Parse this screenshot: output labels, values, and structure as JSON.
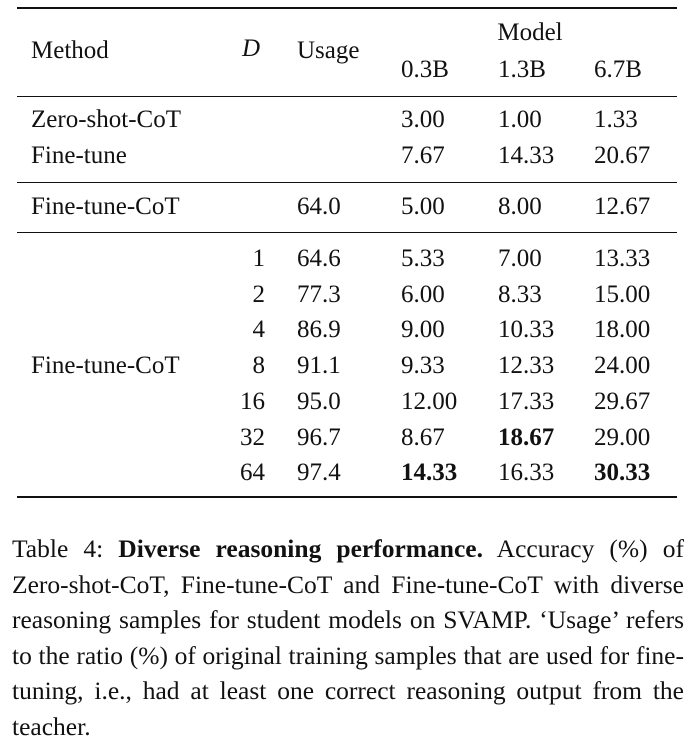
{
  "table": {
    "headers": {
      "method": "Method",
      "d": "D",
      "usage": "Usage",
      "model_group": "Model",
      "models": [
        "0.3B",
        "1.3B",
        "6.7B"
      ]
    },
    "group1": [
      {
        "method": "Zero-shot-CoT",
        "d": "",
        "usage": "",
        "v": [
          "3.00",
          "1.00",
          "1.33"
        ]
      },
      {
        "method": "Fine-tune",
        "d": "",
        "usage": "",
        "v": [
          "7.67",
          "14.33",
          "20.67"
        ]
      }
    ],
    "group2": [
      {
        "method": "Fine-tune-CoT",
        "d": "",
        "usage": "64.0",
        "v": [
          "5.00",
          "8.00",
          "12.67"
        ]
      }
    ],
    "group3": {
      "method": "Fine-tune-CoT",
      "rows": [
        {
          "d": "1",
          "usage": "64.6",
          "v": [
            "5.33",
            "7.00",
            "13.33"
          ]
        },
        {
          "d": "2",
          "usage": "77.3",
          "v": [
            "6.00",
            "8.33",
            "15.00"
          ]
        },
        {
          "d": "4",
          "usage": "86.9",
          "v": [
            "9.00",
            "10.33",
            "18.00"
          ]
        },
        {
          "d": "8",
          "usage": "91.1",
          "v": [
            "9.33",
            "12.33",
            "24.00"
          ]
        },
        {
          "d": "16",
          "usage": "95.0",
          "v": [
            "12.00",
            "17.33",
            "29.67"
          ]
        },
        {
          "d": "32",
          "usage": "96.7",
          "v": [
            "8.67",
            "18.67",
            "29.00"
          ]
        },
        {
          "d": "64",
          "usage": "97.4",
          "v": [
            "14.33",
            "16.33",
            "30.33"
          ]
        }
      ]
    }
  },
  "caption": {
    "label": "Table 4: ",
    "bold": "Diverse reasoning performance.",
    "text": " Accuracy (%) of Zero-shot-CoT, Fine-tune-CoT and Fine-tune-CoT with diverse reasoning samples for student models on SVAMP. ‘Usage’ refers to the ratio (%) of original training samples that are used for fine-tuning, i.e., had at least one correct reasoning output from the teacher."
  }
}
